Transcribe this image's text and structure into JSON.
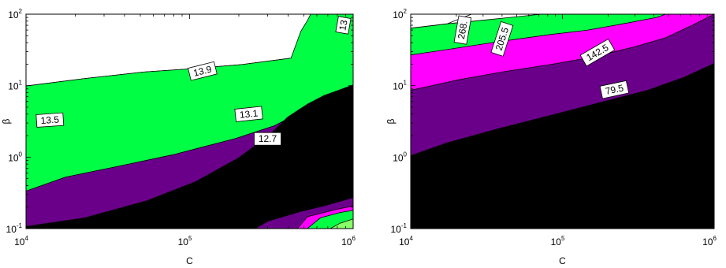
{
  "chart_data": [
    {
      "type": "contour",
      "xlabel": "C",
      "ylabel": "β",
      "xscale": "log",
      "yscale": "log",
      "xlim": [
        10000,
        1000000
      ],
      "ylim": [
        0.1,
        100
      ],
      "x_ticks": [
        {
          "base": "10",
          "exp": "4"
        },
        {
          "base": "10",
          "exp": "5"
        },
        {
          "base": "10",
          "exp": "6"
        }
      ],
      "y_ticks": [
        {
          "base": "10",
          "exp": "-1"
        },
        {
          "base": "10",
          "exp": "0"
        },
        {
          "base": "10",
          "exp": "1"
        },
        {
          "base": "10",
          "exp": "2"
        }
      ],
      "levels": [
        {
          "label": "12.7",
          "color": "#000000"
        },
        {
          "label": "13.1",
          "color": "#6a008a"
        },
        {
          "label": "13.5",
          "color": "#ff00ff"
        },
        {
          "label": "13.9",
          "color": "#00ff44"
        },
        {
          "label": "13",
          "color": "#88ff66"
        }
      ],
      "contour_labels": [
        {
          "text": "13.9",
          "x": 120000,
          "y": 16,
          "rotation": -14
        },
        {
          "text": "13.5",
          "x": 14000,
          "y": 3.3,
          "rotation": -4
        },
        {
          "text": "13.1",
          "x": 230000,
          "y": 4.0,
          "rotation": -6
        },
        {
          "text": "12.7",
          "x": 300000,
          "y": 1.8,
          "rotation": 0
        },
        {
          "text": "13",
          "x": 870000,
          "y": 70,
          "rotation": -80
        }
      ]
    },
    {
      "type": "contour",
      "xlabel": "C",
      "ylabel": "β",
      "xscale": "log",
      "yscale": "log",
      "xlim": [
        10000,
        1000000
      ],
      "ylim": [
        0.1,
        100
      ],
      "x_ticks": [
        {
          "base": "10",
          "exp": "4"
        },
        {
          "base": "10",
          "exp": "5"
        },
        {
          "base": "10",
          "exp": "6"
        }
      ],
      "y_ticks": [
        {
          "base": "10",
          "exp": "-1"
        },
        {
          "base": "10",
          "exp": "0"
        },
        {
          "base": "10",
          "exp": "1"
        },
        {
          "base": "10",
          "exp": "2"
        }
      ],
      "levels": [
        {
          "label": "79.5",
          "color": "#000000"
        },
        {
          "label": "142.5",
          "color": "#6a008a"
        },
        {
          "label": "205.5",
          "color": "#ff00ff"
        },
        {
          "label": "268.",
          "color": "#00ff44"
        }
      ],
      "contour_labels": [
        {
          "text": "79.5",
          "x": 220000,
          "y": 8.8,
          "rotation": -12
        },
        {
          "text": "142.5",
          "x": 170000,
          "y": 29,
          "rotation": -30
        },
        {
          "text": "205.5",
          "x": 40000,
          "y": 45,
          "rotation": -72
        },
        {
          "text": "268.",
          "x": 22000,
          "y": 60,
          "rotation": -80
        }
      ]
    }
  ]
}
